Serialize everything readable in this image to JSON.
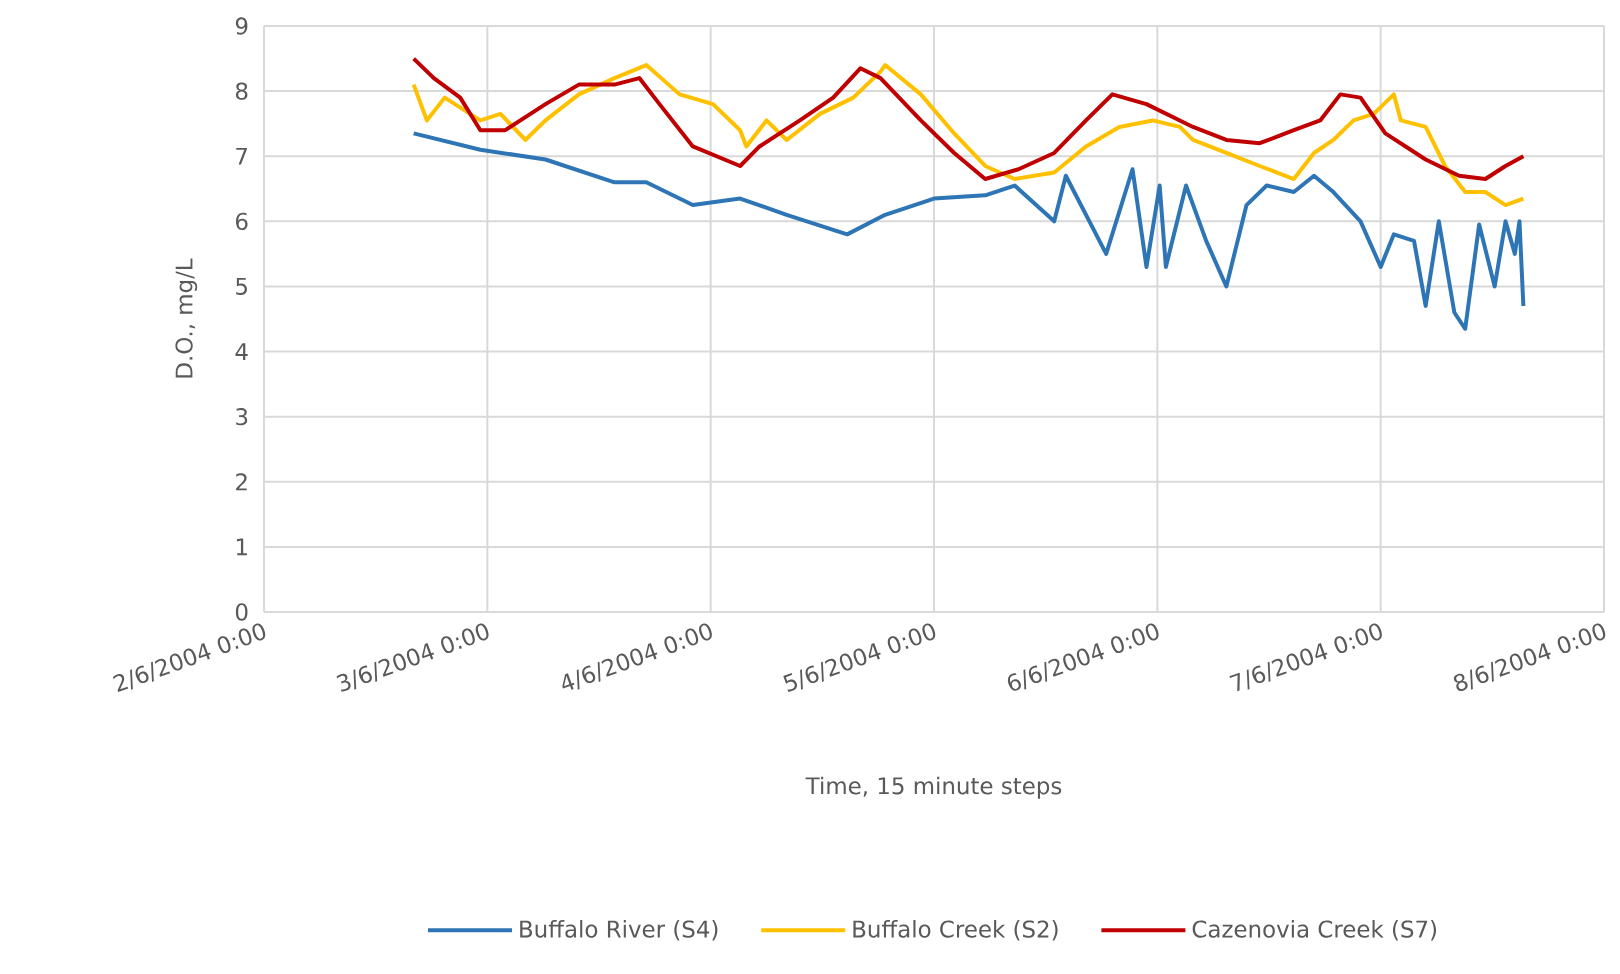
{
  "chart_data": {
    "type": "line",
    "xlabel": "Time, 15 minute steps",
    "ylabel": "D.O., mg/L",
    "xlim": [
      "2004-06-02",
      "2004-06-08"
    ],
    "ylim": [
      0,
      9
    ],
    "xticks": [
      {
        "value": "2004-06-02",
        "label": "2/6/2004 0:00"
      },
      {
        "value": "2004-06-03",
        "label": "3/6/2004 0:00"
      },
      {
        "value": "2004-06-04",
        "label": "4/6/2004 0:00"
      },
      {
        "value": "2004-06-05",
        "label": "5/6/2004 0:00"
      },
      {
        "value": "2004-06-06",
        "label": "6/6/2004 0:00"
      },
      {
        "value": "2004-06-07",
        "label": "7/6/2004 0:00"
      },
      {
        "value": "2004-06-08",
        "label": "8/6/2004 0:00"
      }
    ],
    "yticks": [
      0,
      1,
      2,
      3,
      4,
      5,
      6,
      7,
      8,
      9
    ],
    "grid": true,
    "legend": "bottom",
    "series": [
      {
        "name": "Buffalo River (S4)",
        "color": "#2e75b6",
        "x": [
          "2004-06-02T16:05",
          "2004-06-02T23:15",
          "2004-06-03T06:15",
          "2004-06-03T13:40",
          "2004-06-03T17:05",
          "2004-06-03T22:05",
          "2004-06-04T03:10",
          "2004-06-04T08:10",
          "2004-06-04T14:40",
          "2004-06-04T18:45",
          "2004-06-05T00:00",
          "2004-06-05T05:30",
          "2004-06-05T08:40",
          "2004-06-05T12:55",
          "2004-06-05T14:10",
          "2004-06-05T18:30",
          "2004-06-05T21:20",
          "2004-06-05T22:50",
          "2004-06-06T00:15",
          "2004-06-06T00:55",
          "2004-06-06T03:05",
          "2004-06-06T05:15",
          "2004-06-06T07:25",
          "2004-06-06T09:35",
          "2004-06-06T11:45",
          "2004-06-06T14:40",
          "2004-06-06T16:50",
          "2004-06-06T18:55",
          "2004-06-06T21:50",
          "2004-06-07T00:00",
          "2004-06-07T01:25",
          "2004-06-07T03:35",
          "2004-06-07T04:50",
          "2004-06-07T06:15",
          "2004-06-07T07:55",
          "2004-06-07T09:05",
          "2004-06-07T10:35",
          "2004-06-07T12:15",
          "2004-06-07T13:25",
          "2004-06-07T14:25",
          "2004-06-07T14:55",
          "2004-06-07T15:20"
        ],
        "values": [
          7.35,
          7.1,
          6.95,
          6.6,
          6.6,
          6.25,
          6.35,
          6.1,
          5.8,
          6.1,
          6.35,
          6.4,
          6.55,
          6.0,
          6.7,
          5.5,
          6.8,
          5.3,
          6.55,
          5.3,
          6.55,
          5.7,
          5.0,
          6.25,
          6.55,
          6.45,
          6.7,
          6.45,
          6.0,
          5.3,
          5.8,
          5.7,
          4.7,
          6.0,
          4.6,
          4.35,
          5.95,
          5.0,
          6.0,
          5.5,
          6.0,
          4.7
        ]
      },
      {
        "name": "Buffalo Creek (S2)",
        "color": "#ffc000",
        "x": [
          "2004-06-02T16:05",
          "2004-06-02T17:30",
          "2004-06-02T19:25",
          "2004-06-02T23:15",
          "2004-06-03T01:25",
          "2004-06-03T04:05",
          "2004-06-03T06:15",
          "2004-06-03T09:50",
          "2004-06-03T13:40",
          "2004-06-03T17:05",
          "2004-06-03T20:40",
          "2004-06-04T00:15",
          "2004-06-04T03:10",
          "2004-06-04T03:50",
          "2004-06-04T06:00",
          "2004-06-04T08:10",
          "2004-06-04T11:45",
          "2004-06-04T15:20",
          "2004-06-04T18:15",
          "2004-06-04T18:45",
          "2004-06-04T22:35",
          "2004-06-05T02:10",
          "2004-06-05T05:30",
          "2004-06-05T08:40",
          "2004-06-05T12:55",
          "2004-06-05T16:20",
          "2004-06-05T19:55",
          "2004-06-05T23:30",
          "2004-06-06T02:25",
          "2004-06-06T03:50",
          "2004-06-06T07:25",
          "2004-06-06T11:00",
          "2004-06-06T14:40",
          "2004-06-06T16:50",
          "2004-06-06T18:55",
          "2004-06-06T21:05",
          "2004-06-06T23:15",
          "2004-06-07T01:25",
          "2004-06-07T02:10",
          "2004-06-07T04:50",
          "2004-06-07T06:55",
          "2004-06-07T09:05",
          "2004-06-07T11:15",
          "2004-06-07T13:25",
          "2004-06-07T15:20"
        ],
        "values": [
          8.1,
          7.55,
          7.9,
          7.55,
          7.65,
          7.25,
          7.55,
          7.95,
          8.2,
          8.4,
          7.95,
          7.8,
          7.4,
          7.15,
          7.55,
          7.25,
          7.65,
          7.9,
          8.3,
          8.4,
          7.95,
          7.35,
          6.85,
          6.65,
          6.75,
          7.15,
          7.45,
          7.55,
          7.45,
          7.25,
          7.05,
          6.85,
          6.65,
          7.05,
          7.25,
          7.55,
          7.65,
          7.95,
          7.55,
          7.45,
          6.85,
          6.45,
          6.45,
          6.25,
          6.35
        ]
      },
      {
        "name": "Cazenovia Creek (S7)",
        "color": "#c00000",
        "x": [
          "2004-06-02T16:05",
          "2004-06-02T18:15",
          "2004-06-02T21:05",
          "2004-06-02T23:15",
          "2004-06-03T01:55",
          "2004-06-03T06:15",
          "2004-06-03T09:50",
          "2004-06-03T13:40",
          "2004-06-03T16:20",
          "2004-06-03T18:30",
          "2004-06-03T22:05",
          "2004-06-04T03:10",
          "2004-06-04T05:15",
          "2004-06-04T09:35",
          "2004-06-04T13:10",
          "2004-06-04T16:05",
          "2004-06-04T18:15",
          "2004-06-04T22:35",
          "2004-06-05T02:10",
          "2004-06-05T05:30",
          "2004-06-05T09:05",
          "2004-06-05T12:55",
          "2004-06-05T16:20",
          "2004-06-05T19:10",
          "2004-06-05T22:50",
          "2004-06-06T02:25",
          "2004-06-06T03:50",
          "2004-06-06T07:25",
          "2004-06-06T11:00",
          "2004-06-06T14:40",
          "2004-06-06T17:30",
          "2004-06-06T19:40",
          "2004-06-06T21:50",
          "2004-06-07T00:30",
          "2004-06-07T04:50",
          "2004-06-07T08:25",
          "2004-06-07T11:15",
          "2004-06-07T13:25",
          "2004-06-07T15:20"
        ],
        "values": [
          8.5,
          8.2,
          7.9,
          7.4,
          7.4,
          7.8,
          8.1,
          8.1,
          8.2,
          7.8,
          7.15,
          6.85,
          7.15,
          7.55,
          7.9,
          8.35,
          8.2,
          7.55,
          7.05,
          6.65,
          6.8,
          7.05,
          7.55,
          7.95,
          7.8,
          7.55,
          7.45,
          7.25,
          7.2,
          7.4,
          7.55,
          7.95,
          7.9,
          7.35,
          6.95,
          6.7,
          6.65,
          6.85,
          7.0
        ]
      }
    ]
  }
}
